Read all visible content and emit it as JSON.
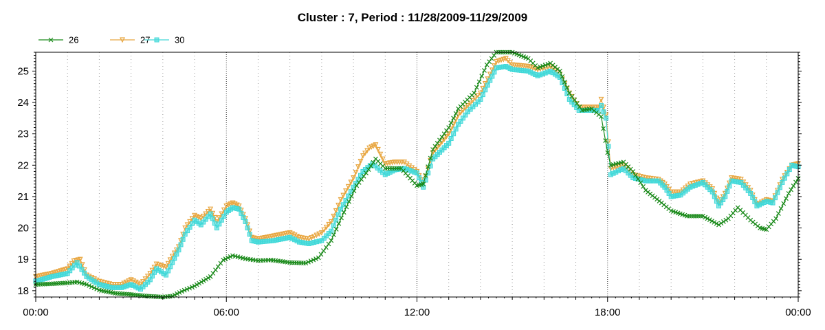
{
  "chart_data": {
    "type": "line",
    "title": "Cluster : 7, Period : 11/28/2009-11/29/2009",
    "xlabel": "",
    "ylabel": "",
    "x_unit": "hours since 11/28/2009 00:00",
    "xlim": [
      0,
      24
    ],
    "ylim": [
      17.8,
      25.6
    ],
    "x_ticks": [
      {
        "x": 0,
        "label": "00:00"
      },
      {
        "x": 6,
        "label": "06:00"
      },
      {
        "x": 12,
        "label": "12:00"
      },
      {
        "x": 18,
        "label": "18:00"
      },
      {
        "x": 24,
        "label": "00:00"
      }
    ],
    "y_ticks": [
      18,
      19,
      20,
      21,
      22,
      23,
      24,
      25
    ],
    "grid": "dotted vertical lines every hour",
    "legend_position": "top-left",
    "series": [
      {
        "name": "26",
        "color": "#1a8a1a",
        "marker": "x",
        "points": [
          [
            0,
            18.2
          ],
          [
            0.5,
            18.22
          ],
          [
            1,
            18.25
          ],
          [
            1.3,
            18.28
          ],
          [
            1.6,
            18.2
          ],
          [
            2,
            18.02
          ],
          [
            2.5,
            17.92
          ],
          [
            3,
            17.88
          ],
          [
            3.5,
            17.83
          ],
          [
            4,
            17.8
          ],
          [
            4.3,
            17.83
          ],
          [
            4.6,
            17.98
          ],
          [
            5,
            18.15
          ],
          [
            5.5,
            18.45
          ],
          [
            5.9,
            18.98
          ],
          [
            6.2,
            19.12
          ],
          [
            6.6,
            19.02
          ],
          [
            7,
            18.96
          ],
          [
            7.4,
            18.98
          ],
          [
            8,
            18.9
          ],
          [
            8.5,
            18.88
          ],
          [
            8.9,
            19.05
          ],
          [
            9.3,
            19.6
          ],
          [
            9.7,
            20.5
          ],
          [
            10.1,
            21.35
          ],
          [
            10.4,
            21.75
          ],
          [
            10.7,
            22.2
          ],
          [
            11,
            21.9
          ],
          [
            11.5,
            21.9
          ],
          [
            12,
            21.35
          ],
          [
            12.2,
            21.4
          ],
          [
            12.5,
            22.5
          ],
          [
            13,
            23.2
          ],
          [
            13.3,
            23.8
          ],
          [
            13.8,
            24.3
          ],
          [
            14.2,
            25.2
          ],
          [
            14.5,
            25.6
          ],
          [
            15,
            25.6
          ],
          [
            15.5,
            25.4
          ],
          [
            15.8,
            25.1
          ],
          [
            16.2,
            25.25
          ],
          [
            16.5,
            25.0
          ],
          [
            16.8,
            24.3
          ],
          [
            17.2,
            23.75
          ],
          [
            17.5,
            23.8
          ],
          [
            17.8,
            23.55
          ],
          [
            18,
            22.4
          ],
          [
            18.1,
            22.0
          ],
          [
            18.5,
            22.1
          ],
          [
            18.8,
            21.8
          ],
          [
            19.2,
            21.2
          ],
          [
            19.7,
            20.8
          ],
          [
            20,
            20.55
          ],
          [
            20.5,
            20.38
          ],
          [
            21,
            20.38
          ],
          [
            21.5,
            20.1
          ],
          [
            21.8,
            20.3
          ],
          [
            22.1,
            20.65
          ],
          [
            22.5,
            20.25
          ],
          [
            22.8,
            20.0
          ],
          [
            23,
            19.95
          ],
          [
            23.3,
            20.3
          ],
          [
            23.7,
            21.1
          ],
          [
            24,
            21.58
          ]
        ]
      },
      {
        "name": "27",
        "color": "#e8a640",
        "marker": "triangle-down",
        "points": [
          [
            0,
            18.45
          ],
          [
            0.5,
            18.55
          ],
          [
            1,
            18.7
          ],
          [
            1.2,
            18.95
          ],
          [
            1.4,
            19.0
          ],
          [
            1.6,
            18.5
          ],
          [
            2,
            18.3
          ],
          [
            2.4,
            18.2
          ],
          [
            2.7,
            18.2
          ],
          [
            3,
            18.35
          ],
          [
            3.3,
            18.2
          ],
          [
            3.6,
            18.55
          ],
          [
            3.8,
            18.85
          ],
          [
            4.1,
            18.75
          ],
          [
            4.3,
            19.1
          ],
          [
            4.5,
            19.4
          ],
          [
            4.7,
            20.0
          ],
          [
            5,
            20.4
          ],
          [
            5.2,
            20.3
          ],
          [
            5.5,
            20.6
          ],
          [
            5.7,
            20.2
          ],
          [
            6,
            20.7
          ],
          [
            6.2,
            20.8
          ],
          [
            6.4,
            20.7
          ],
          [
            6.6,
            20.3
          ],
          [
            6.8,
            19.7
          ],
          [
            7,
            19.65
          ],
          [
            7.5,
            19.75
          ],
          [
            8,
            19.85
          ],
          [
            8.3,
            19.7
          ],
          [
            8.6,
            19.65
          ],
          [
            9,
            19.85
          ],
          [
            9.3,
            20.2
          ],
          [
            9.6,
            20.9
          ],
          [
            10,
            21.6
          ],
          [
            10.3,
            22.3
          ],
          [
            10.5,
            22.55
          ],
          [
            10.7,
            22.65
          ],
          [
            11,
            22.05
          ],
          [
            11.3,
            22.1
          ],
          [
            11.6,
            22.1
          ],
          [
            12,
            21.8
          ],
          [
            12.2,
            21.4
          ],
          [
            12.5,
            22.4
          ],
          [
            13,
            23.0
          ],
          [
            13.3,
            23.6
          ],
          [
            13.6,
            23.9
          ],
          [
            14,
            24.3
          ],
          [
            14.3,
            24.9
          ],
          [
            14.5,
            25.3
          ],
          [
            14.8,
            25.4
          ],
          [
            15,
            25.2
          ],
          [
            15.5,
            25.15
          ],
          [
            15.8,
            25.05
          ],
          [
            16.2,
            25.15
          ],
          [
            16.5,
            24.9
          ],
          [
            16.8,
            24.3
          ],
          [
            17.1,
            23.85
          ],
          [
            17.4,
            23.85
          ],
          [
            17.7,
            23.85
          ],
          [
            17.8,
            24.1
          ],
          [
            17.95,
            23.6
          ],
          [
            18.1,
            21.9
          ],
          [
            18.5,
            22.0
          ],
          [
            18.8,
            21.7
          ],
          [
            19.2,
            21.6
          ],
          [
            19.6,
            21.55
          ],
          [
            19.8,
            21.4
          ],
          [
            20,
            21.15
          ],
          [
            20.3,
            21.15
          ],
          [
            20.6,
            21.4
          ],
          [
            21,
            21.5
          ],
          [
            21.3,
            21.25
          ],
          [
            21.5,
            20.8
          ],
          [
            21.7,
            21.1
          ],
          [
            21.9,
            21.6
          ],
          [
            22.2,
            21.55
          ],
          [
            22.5,
            21.2
          ],
          [
            22.7,
            20.75
          ],
          [
            23,
            20.9
          ],
          [
            23.2,
            20.85
          ],
          [
            23.5,
            21.55
          ],
          [
            23.8,
            22.0
          ],
          [
            24,
            22.05
          ]
        ]
      },
      {
        "name": "30",
        "color": "#40d8d8",
        "marker": "square",
        "points": [
          [
            0,
            18.3
          ],
          [
            0.5,
            18.45
          ],
          [
            1,
            18.55
          ],
          [
            1.3,
            18.9
          ],
          [
            1.6,
            18.45
          ],
          [
            2,
            18.2
          ],
          [
            2.4,
            18.1
          ],
          [
            2.7,
            18.1
          ],
          [
            3,
            18.2
          ],
          [
            3.3,
            18.05
          ],
          [
            3.6,
            18.35
          ],
          [
            3.8,
            18.7
          ],
          [
            4.1,
            18.5
          ],
          [
            4.3,
            18.9
          ],
          [
            4.5,
            19.3
          ],
          [
            4.7,
            19.8
          ],
          [
            5,
            20.25
          ],
          [
            5.2,
            20.1
          ],
          [
            5.5,
            20.45
          ],
          [
            5.7,
            20.0
          ],
          [
            6,
            20.5
          ],
          [
            6.2,
            20.65
          ],
          [
            6.4,
            20.6
          ],
          [
            6.6,
            20.2
          ],
          [
            6.8,
            19.6
          ],
          [
            7,
            19.55
          ],
          [
            7.5,
            19.6
          ],
          [
            8,
            19.7
          ],
          [
            8.3,
            19.55
          ],
          [
            8.6,
            19.5
          ],
          [
            9,
            19.6
          ],
          [
            9.3,
            19.9
          ],
          [
            9.6,
            20.6
          ],
          [
            10,
            21.3
          ],
          [
            10.3,
            21.8
          ],
          [
            10.6,
            22.05
          ],
          [
            11,
            21.7
          ],
          [
            11.3,
            21.85
          ],
          [
            11.6,
            21.9
          ],
          [
            12,
            21.75
          ],
          [
            12.2,
            21.3
          ],
          [
            12.5,
            22.2
          ],
          [
            13,
            22.7
          ],
          [
            13.3,
            23.3
          ],
          [
            13.6,
            23.7
          ],
          [
            14,
            24.1
          ],
          [
            14.3,
            24.7
          ],
          [
            14.5,
            25.1
          ],
          [
            14.8,
            25.15
          ],
          [
            15,
            25.05
          ],
          [
            15.5,
            25.0
          ],
          [
            15.8,
            24.85
          ],
          [
            16.2,
            25.0
          ],
          [
            16.5,
            24.8
          ],
          [
            16.8,
            24.1
          ],
          [
            17.1,
            23.75
          ],
          [
            17.4,
            23.75
          ],
          [
            17.7,
            23.75
          ],
          [
            17.8,
            23.9
          ],
          [
            17.95,
            23.5
          ],
          [
            18.1,
            21.7
          ],
          [
            18.5,
            21.9
          ],
          [
            18.8,
            21.6
          ],
          [
            19.2,
            21.5
          ],
          [
            19.6,
            21.5
          ],
          [
            19.8,
            21.3
          ],
          [
            20,
            21.0
          ],
          [
            20.3,
            21.05
          ],
          [
            20.6,
            21.3
          ],
          [
            21,
            21.45
          ],
          [
            21.3,
            21.15
          ],
          [
            21.5,
            20.7
          ],
          [
            21.7,
            21.0
          ],
          [
            21.9,
            21.5
          ],
          [
            22.2,
            21.45
          ],
          [
            22.5,
            21.1
          ],
          [
            22.7,
            20.7
          ],
          [
            23,
            20.85
          ],
          [
            23.2,
            20.8
          ],
          [
            23.5,
            21.45
          ],
          [
            23.8,
            22.0
          ],
          [
            24,
            21.95
          ]
        ]
      }
    ]
  }
}
